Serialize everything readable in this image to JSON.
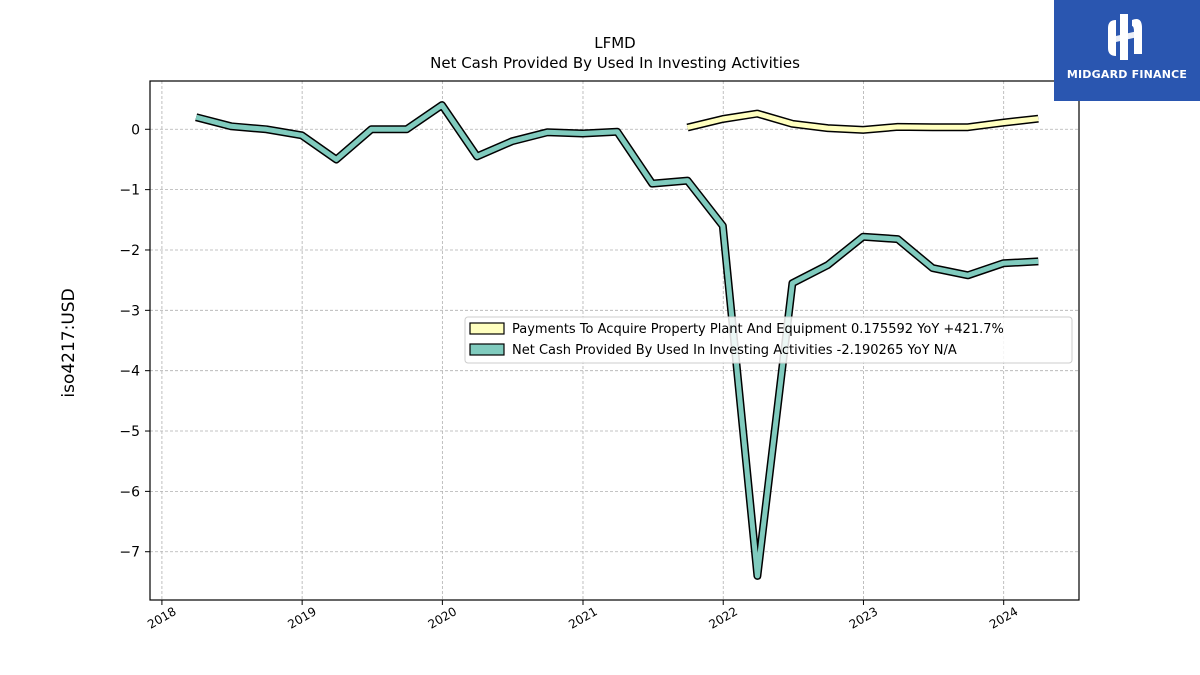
{
  "logo": {
    "text": "MIDGARD FINANCE",
    "color": "#2a56b0"
  },
  "chart_data": {
    "type": "line",
    "title": "LFMD",
    "subtitle": "Net Cash Provided By Used In Investing Activities",
    "ylabel": "iso4217:USD",
    "xlabel": "",
    "x_ticks": [
      "2018",
      "2019",
      "2020",
      "2021",
      "2022",
      "2023",
      "2024"
    ],
    "y_ticks": [
      0,
      -1,
      -2,
      -3,
      -4,
      -5,
      -6,
      -7
    ],
    "y_tick_labels": [
      "0",
      "−1",
      "−2",
      "−3",
      "−4",
      "−5",
      "−6",
      "−7"
    ],
    "xlim": [
      "2017-12-01",
      "2024-07-15"
    ],
    "ylim": [
      -7.8,
      0.8
    ],
    "grid": true,
    "legend_position": "center-right",
    "series": [
      {
        "name": "Payments To Acquire Property Plant And Equipment  0.175592 YoY +421.7%",
        "color": "#ffffbf",
        "x": [
          "2021-09-30",
          "2021-12-31",
          "2022-03-31",
          "2022-06-30",
          "2022-09-30",
          "2022-12-31",
          "2023-03-31",
          "2023-06-30",
          "2023-09-30",
          "2023-12-31",
          "2024-03-31"
        ],
        "y": [
          0.03,
          0.17,
          0.26,
          0.09,
          0.02,
          -0.01,
          0.04,
          0.035,
          0.035,
          0.11,
          0.176
        ]
      },
      {
        "name": "Net Cash Provided By Used In Investing Activities  -2.190265 YoY N/A",
        "color": "#80cbbe",
        "x": [
          "2018-03-31",
          "2018-06-30",
          "2018-09-30",
          "2018-12-31",
          "2019-03-31",
          "2019-06-30",
          "2019-09-30",
          "2019-12-31",
          "2020-03-31",
          "2020-06-30",
          "2020-09-30",
          "2020-12-31",
          "2021-03-31",
          "2021-06-30",
          "2021-09-30",
          "2021-12-31",
          "2022-03-31",
          "2022-06-30",
          "2022-09-30",
          "2022-12-31",
          "2023-03-31",
          "2023-06-30",
          "2023-09-30",
          "2023-12-31",
          "2024-03-31"
        ],
        "y": [
          0.2,
          0.05,
          0.0,
          -0.1,
          -0.5,
          0.0,
          0.0,
          0.4,
          -0.45,
          -0.2,
          -0.05,
          -0.07,
          -0.04,
          -0.9,
          -0.85,
          -1.6,
          -7.4,
          -2.55,
          -2.25,
          -1.78,
          -1.82,
          -2.3,
          -2.42,
          -2.22,
          -2.19
        ]
      }
    ]
  }
}
